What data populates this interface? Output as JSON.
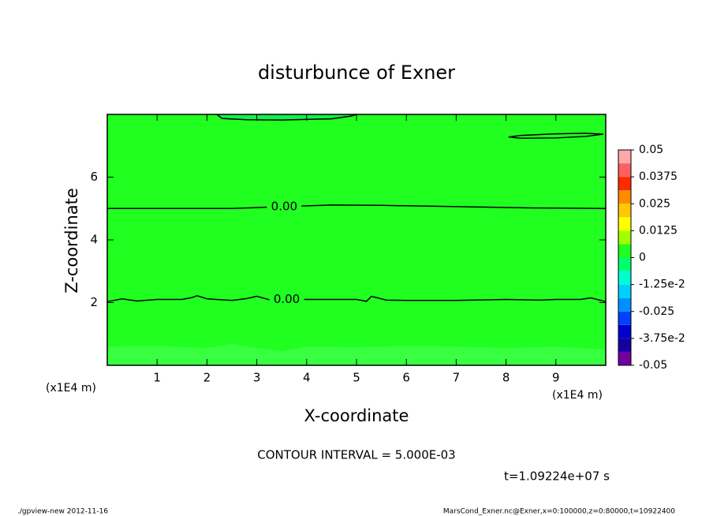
{
  "chart_data": {
    "type": "contour",
    "title": "disturbunce of Exner",
    "xlabel": "X-coordinate",
    "ylabel": "Z-coordinate",
    "x_unit": "(x1E4 m)",
    "y_unit": "(x1E4 m)",
    "xlim": [
      0,
      10
    ],
    "ylim": [
      0,
      8
    ],
    "xticks": [
      1,
      2,
      3,
      4,
      5,
      6,
      7,
      8,
      9
    ],
    "yticks": [
      2,
      4,
      6
    ],
    "field_color": "#20ff20",
    "regions": [
      {
        "color": "#38ff40",
        "x": [
          0,
          1,
          2,
          2.5,
          3,
          3.5,
          4,
          5,
          6,
          7,
          8,
          9,
          10,
          10,
          0
        ],
        "y": [
          0.6,
          0.62,
          0.55,
          0.68,
          0.55,
          0.45,
          0.6,
          0.58,
          0.62,
          0.6,
          0.55,
          0.6,
          0.5,
          0,
          0
        ]
      },
      {
        "color": "#10f050",
        "x": [
          2.2,
          2.3,
          2.8,
          3.5,
          4.2,
          4.5,
          4.9,
          5.0
        ],
        "y": [
          8,
          7.87,
          7.83,
          7.82,
          7.85,
          7.86,
          7.95,
          8
        ]
      }
    ],
    "contours": [
      {
        "label": "0.00",
        "x": [
          0,
          2.5,
          3.2,
          3.55,
          4.5,
          5.5,
          7,
          8.5,
          10
        ],
        "y": [
          5.0,
          5.0,
          5.04,
          5.06,
          5.11,
          5.1,
          5.06,
          5.02,
          5.0
        ]
      },
      {
        "label": "0.00",
        "x": [
          0,
          0.3,
          0.6,
          1,
          1.5,
          1.7,
          1.8,
          2,
          2.5,
          2.8,
          3.0,
          3.3,
          3.6,
          4,
          5,
          5.2,
          5.3,
          5.5,
          5.6,
          6,
          7,
          8,
          8.7,
          9,
          9.5,
          9.7,
          10
        ],
        "y": [
          2.03,
          2.12,
          2.05,
          2.1,
          2.1,
          2.16,
          2.22,
          2.12,
          2.07,
          2.13,
          2.2,
          2.07,
          2.1,
          2.1,
          2.1,
          2.04,
          2.2,
          2.12,
          2.08,
          2.07,
          2.07,
          2.1,
          2.08,
          2.1,
          2.1,
          2.15,
          2.03
        ]
      },
      {
        "x": [
          2.2,
          2.3,
          2.8,
          3.5,
          4.2,
          4.5,
          4.9,
          5.0
        ],
        "y": [
          8,
          7.87,
          7.83,
          7.82,
          7.85,
          7.86,
          7.95,
          8
        ]
      },
      {
        "x": [
          8.05,
          8.3,
          9,
          9.6,
          9.95,
          9.6,
          9,
          8.3,
          8.05
        ],
        "y": [
          7.28,
          7.33,
          7.38,
          7.4,
          7.37,
          7.3,
          7.25,
          7.24,
          7.28
        ]
      }
    ],
    "colorbar": {
      "lim": [
        -0.05,
        0.05
      ],
      "levels": [
        -0.05,
        -0.04375,
        -0.0375,
        -0.03125,
        -0.025,
        -0.01875,
        -0.0125,
        -0.00625,
        0,
        0.00625,
        0.0125,
        0.01875,
        0.025,
        0.03125,
        0.0375,
        0.04375,
        0.05
      ],
      "colors": [
        "#7000a0",
        "#1800a0",
        "#0000d0",
        "#0040ff",
        "#0090ff",
        "#00d0ff",
        "#00ffd0",
        "#00ff70",
        "#20ff20",
        "#a0ff00",
        "#ffff00",
        "#ffc800",
        "#ff8c00",
        "#ff2a00",
        "#ff6060",
        "#ffa8a8"
      ],
      "ticks": [
        {
          "value": -0.05,
          "label": "-0.05"
        },
        {
          "value": -0.0375,
          "label": "-3.75e-2"
        },
        {
          "value": -0.025,
          "label": "-0.025"
        },
        {
          "value": -0.0125,
          "label": "-1.25e-2"
        },
        0,
        0.0125,
        0.025,
        0.0375,
        0.05
      ]
    },
    "contour_interval": "CONTOUR INTERVAL = 5.000E-03",
    "time_label": "t=1.09224e+07 s",
    "footer_left": "./gpview-new  2012-11-16",
    "footer_right": "MarsCond_Exner.nc@Exner,x=0:100000,z=0:80000,t=10922400"
  }
}
